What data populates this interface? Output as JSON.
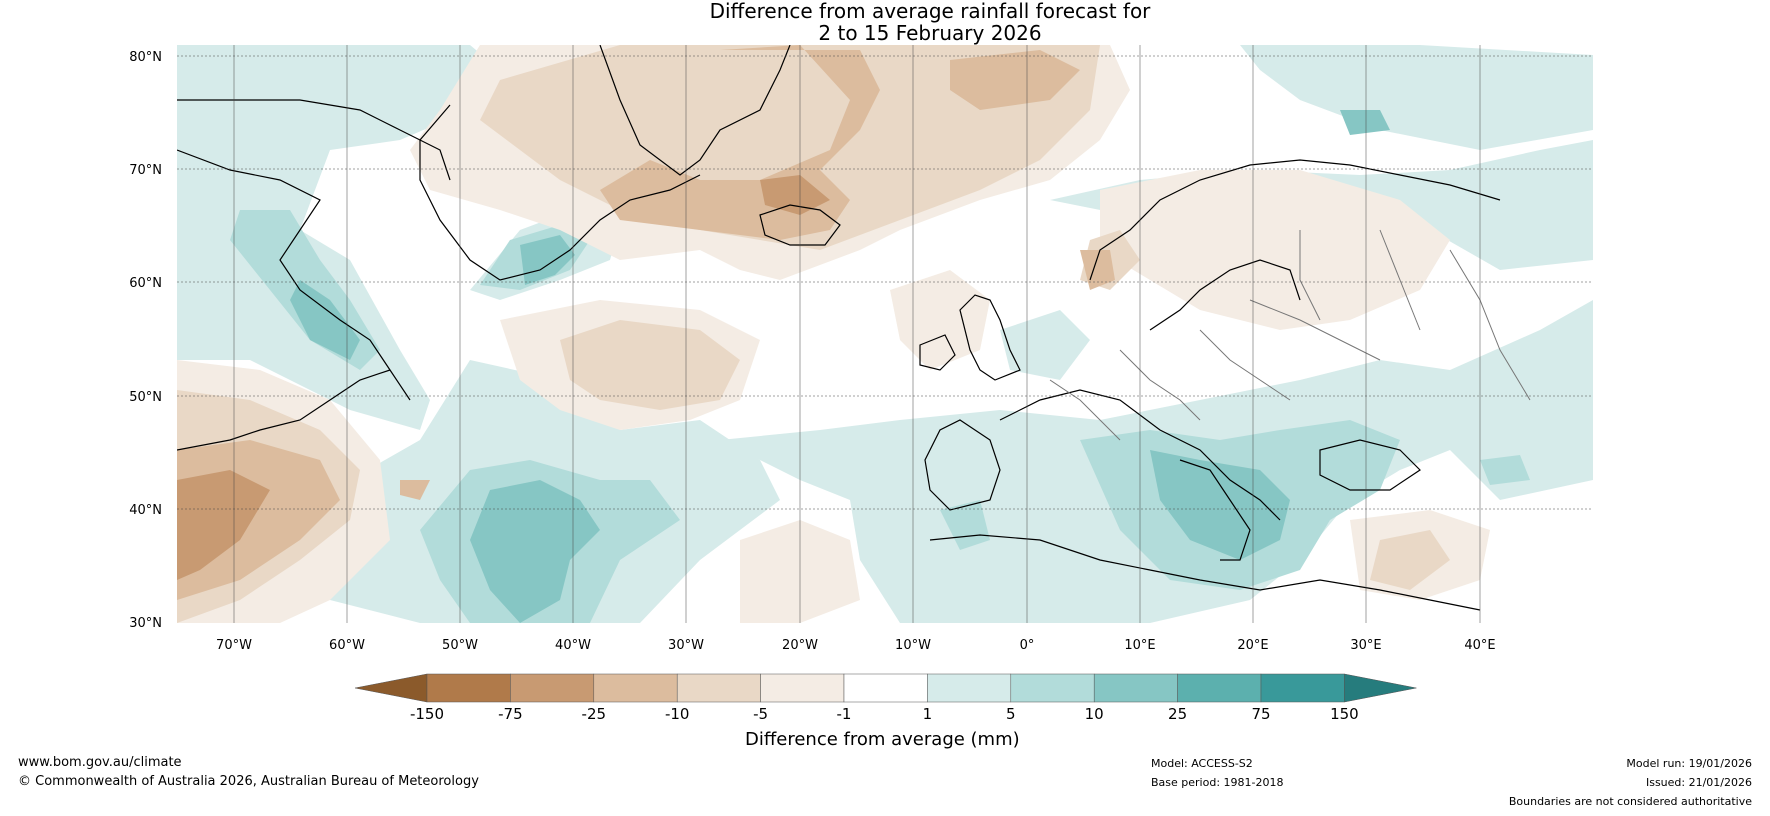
{
  "title": {
    "line1": "Difference from average rainfall forecast for",
    "line2": "2 to 15 February 2026"
  },
  "map": {
    "lat_labels": [
      "80°N",
      "70°N",
      "60°N",
      "50°N",
      "40°N",
      "30°N"
    ],
    "lon_labels": [
      "70°W",
      "60°W",
      "50°W",
      "40°W",
      "30°W",
      "20°W",
      "10°W",
      "0°",
      "10°E",
      "20°E",
      "30°E",
      "40°E"
    ],
    "extent": {
      "lon_min": -75,
      "lon_max": 50,
      "lat_min": 30,
      "lat_max": 81
    }
  },
  "colorbar": {
    "ticks": [
      "-150",
      "-75",
      "-25",
      "-10",
      "-5",
      "-1",
      "1",
      "5",
      "10",
      "25",
      "75",
      "150"
    ],
    "colors": [
      "#8b5a2b",
      "#b07a4a",
      "#c89a72",
      "#dcbc9e",
      "#e9d8c6",
      "#f4ece4",
      "#ffffff",
      "#d6ebea",
      "#b2dcda",
      "#86c6c4",
      "#5cb0ae",
      "#39999a",
      "#267c7d"
    ],
    "label": "Difference from average (mm)"
  },
  "footer": {
    "website": "www.bom.gov.au/climate",
    "copyright": "© Commonwealth of Australia 2026, Australian Bureau of Meteorology",
    "model": "Model: ACCESS-S2",
    "base_period": "Base period: 1981-2018",
    "model_run": "Model run: 19/01/2026",
    "issued": "Issued: 21/01/2026",
    "disclaimer": "Boundaries are not considered authoritative"
  }
}
